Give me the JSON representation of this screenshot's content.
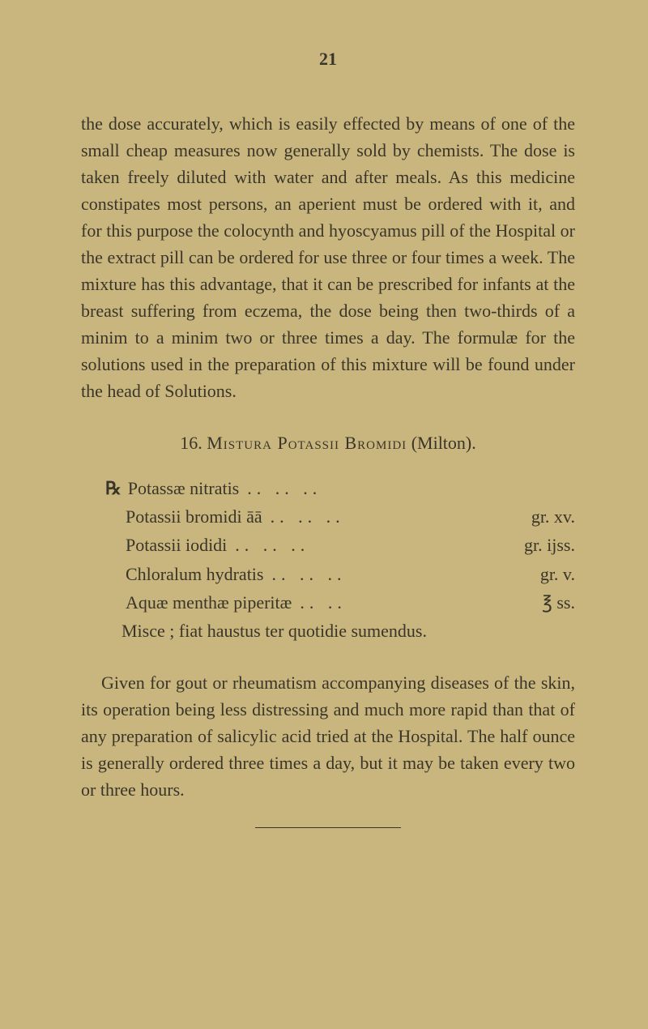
{
  "page_number": "21",
  "paragraph1": "the dose accurately, which is easily effected by means of one of the small cheap measures now generally sold by chemists. The dose is taken freely diluted with water and after meals. As this medicine constipates most persons, an aperient must be ordered with it, and for this purpose the colocynth and hyoscyamus pill of the Hospital or the extract pill can be ordered for use three or four times a week. The mixture has this advantage, that it can be prescribed for infants at the breast suffering from eczema, the dose being then two-thirds of a minim to a minim two or three times a day. The formulæ for the solutions used in the preparation of this mixture will be found under the head of Solutions.",
  "section_number": "16.",
  "section_title_caps": "Mistura Potassii Bromidi",
  "section_title_paren": "(Milton).",
  "prescription": {
    "rx_symbol": "℞",
    "lines": [
      {
        "ingredient": "Potassæ nitratis",
        "dots": "..    ..    ..",
        "amount": ""
      },
      {
        "ingredient": "Potassii bromidi āā",
        "dots": "..    ..    ..",
        "amount": "gr. xv."
      },
      {
        "ingredient": "Potassii iodidi",
        "dots": "..    ..    ..",
        "amount": "gr. ijss."
      },
      {
        "ingredient": "Chloralum hydratis",
        "dots": "..    ..    ..",
        "amount": "gr. v."
      },
      {
        "ingredient": "Aquæ menthæ piperitæ",
        "dots": "..    ..",
        "amount": "℥ ss."
      }
    ],
    "misce": "Misce ; fiat haustus ter quotidie sumendus."
  },
  "paragraph2": "Given for gout or rheumatism accompanying diseases of the skin, its operation being less distressing and much more rapid than that of any preparation of salicylic acid tried at the Hospital. The half ounce is generally ordered three times a day, but it may be taken every two or three hours.",
  "colors": {
    "background": "#c9b67e",
    "text": "#3a3528"
  },
  "typography": {
    "font_family": "Times New Roman",
    "body_fontsize": 22,
    "line_height": 1.5
  }
}
